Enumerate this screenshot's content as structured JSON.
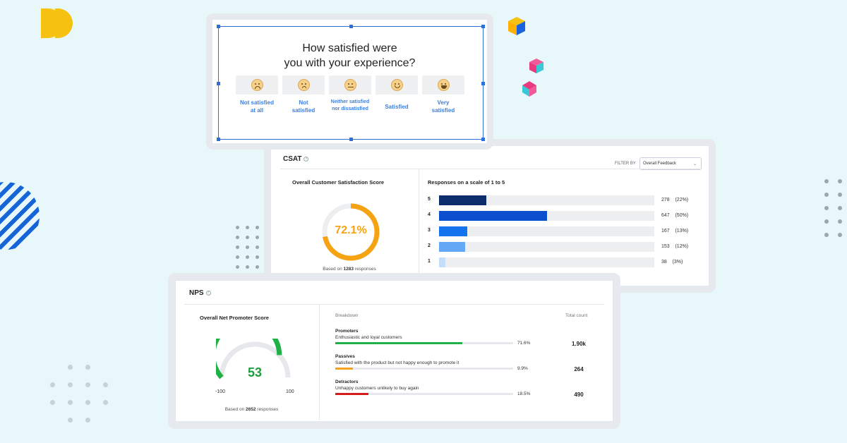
{
  "colors": {
    "background": "#e8f8fa",
    "accent_blue": "#2f6fd8",
    "csat_orange": "#f5a313",
    "nps_green": "#1e9e3a",
    "passive_orange": "#f6a21e",
    "detractor_red": "#d61b1b"
  },
  "survey": {
    "question_line1": "How satisfied were",
    "question_line2": "you with your experience?",
    "choices": [
      {
        "icon": "very-sad-face-icon",
        "line1": "Not satisfied",
        "line2": "at all"
      },
      {
        "icon": "sad-face-icon",
        "line1": "Not",
        "line2": "satisfied"
      },
      {
        "icon": "neutral-face-icon",
        "line1": "Neither satisfied",
        "line2": "nor dissatisfied"
      },
      {
        "icon": "smile-face-icon",
        "line1": "Satisfied",
        "line2": ""
      },
      {
        "icon": "big-smile-face-icon",
        "line1": "Very",
        "line2": "satisfied"
      }
    ]
  },
  "csat": {
    "title": "CSAT",
    "filter_label": "FILTER BY",
    "filter_value": "Overall Feedback",
    "score_title": "Overall Customer Satisfaction Score",
    "score": "72.1%",
    "score_fraction": 0.721,
    "based_prefix": "Based on",
    "based_count": "1283",
    "based_suffix": "responses",
    "distribution_title": "Responses on a scale of 1 to 5",
    "rows": [
      {
        "label": "5",
        "count": "278",
        "pct": "(22%)",
        "fraction": 0.22,
        "color": "#0d2c6c"
      },
      {
        "label": "4",
        "count": "647",
        "pct": "(50%)",
        "fraction": 0.5,
        "color": "#0b4fcf"
      },
      {
        "label": "3",
        "count": "167",
        "pct": "(13%)",
        "fraction": 0.13,
        "color": "#1673f0"
      },
      {
        "label": "2",
        "count": "153",
        "pct": "(12%)",
        "fraction": 0.12,
        "color": "#62a8f4"
      },
      {
        "label": "1",
        "count": "38",
        "pct": "(3%)",
        "fraction": 0.03,
        "color": "#c5def8"
      }
    ]
  },
  "nps": {
    "title": "NPS",
    "score_title": "Overall Net Promoter Score",
    "score": "53",
    "score_value": 53,
    "min_label": "-100",
    "max_label": "100",
    "based_prefix": "Based on",
    "based_count": "2652",
    "based_suffix": "responses",
    "breakdown_header": "Breakdown",
    "total_header": "Total count",
    "rows": [
      {
        "name": "Promoters",
        "desc": "Enthusiastic and loyal customers",
        "pct": "71.6%",
        "fraction": 0.716,
        "total": "1.90k",
        "color": "#1fb146"
      },
      {
        "name": "Passives",
        "desc": "Satisfied with the product but not happy enough to promote it",
        "pct": "9.9%",
        "fraction": 0.099,
        "total": "264",
        "color": "#f6a21e"
      },
      {
        "name": "Detractors",
        "desc": "Unhappy customers unlikely to buy again",
        "pct": "18.5%",
        "fraction": 0.185,
        "total": "490",
        "color": "#d61b1b"
      }
    ]
  }
}
